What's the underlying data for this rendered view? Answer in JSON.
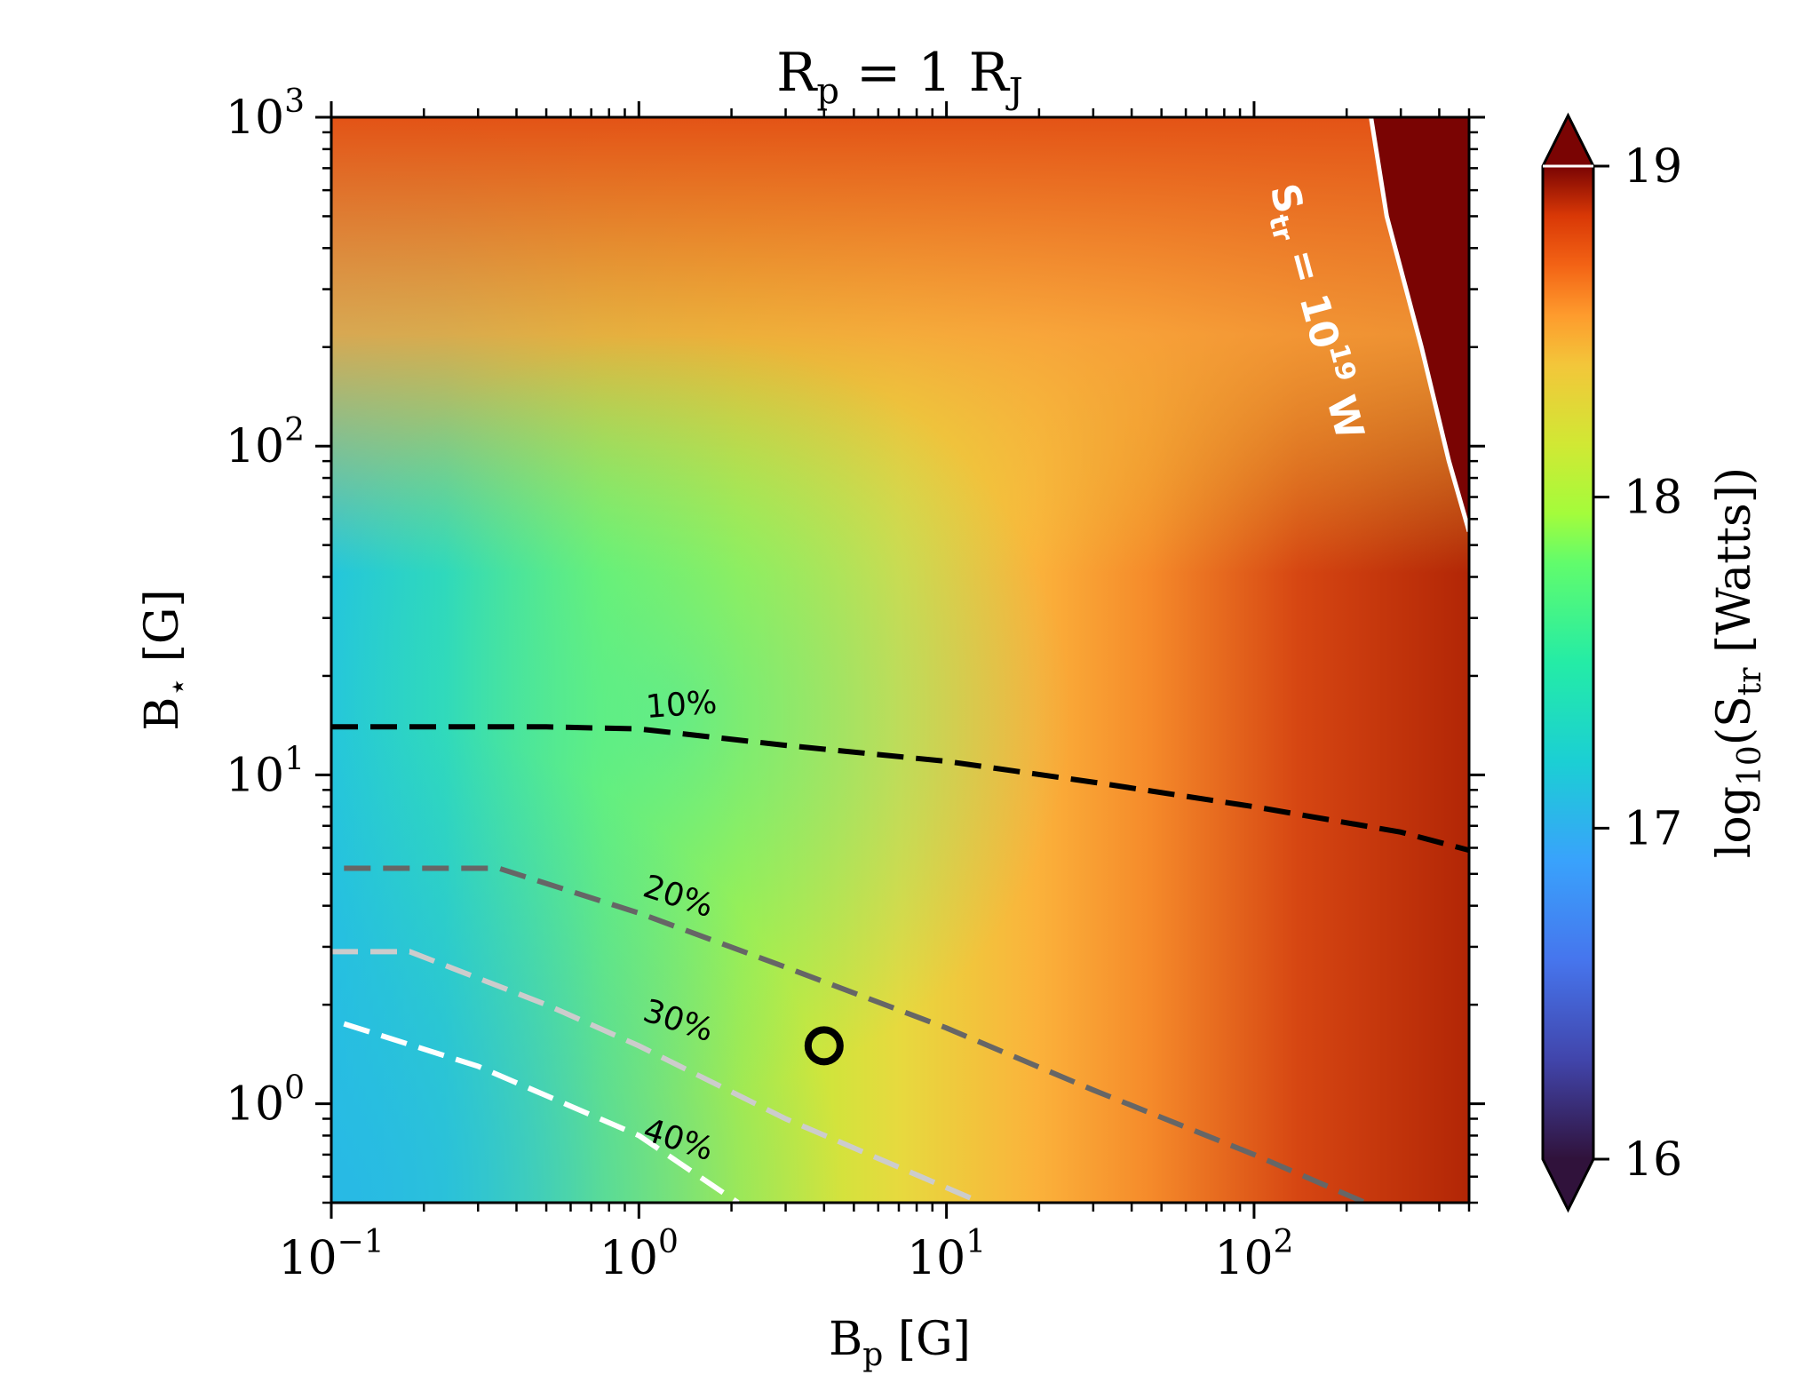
{
  "title": {
    "main": "R",
    "sub": "p",
    "eq": " = 1 R",
    "sub2": "J"
  },
  "xaxis": {
    "label": "B",
    "label_sub": "p",
    "label_unit": " [G]",
    "scale": "log",
    "lim": [
      0.1,
      500
    ],
    "ticks": [
      {
        "base": "10",
        "exp": "−1",
        "value": 0.1
      },
      {
        "base": "10",
        "exp": "0",
        "value": 1
      },
      {
        "base": "10",
        "exp": "1",
        "value": 10
      },
      {
        "base": "10",
        "exp": "2",
        "value": 100
      }
    ]
  },
  "yaxis": {
    "label": "B",
    "label_sub": "⋆",
    "label_unit": " [G]",
    "scale": "log",
    "lim": [
      0.5,
      1000
    ],
    "ticks": [
      {
        "base": "10",
        "exp": "0",
        "value": 1
      },
      {
        "base": "10",
        "exp": "1",
        "value": 10
      },
      {
        "base": "10",
        "exp": "2",
        "value": 100
      },
      {
        "base": "10",
        "exp": "3",
        "value": 1000
      }
    ]
  },
  "colorbar": {
    "label_prefix": "log",
    "label_sub": "10",
    "label_mid": "(S",
    "label_sub2": "tr",
    "label_suffix": " [Watts])",
    "range": [
      16,
      19
    ],
    "extend": "both",
    "ticks": [
      {
        "label": "16",
        "value": 16
      },
      {
        "label": "17",
        "value": 17
      },
      {
        "label": "18",
        "value": 18
      },
      {
        "label": "19",
        "value": 19
      }
    ],
    "colormap": "turbo"
  },
  "chart_data": {
    "type": "heatmap",
    "title": "Rp = 1 RJ",
    "xlabel": "Bp [G]",
    "ylabel": "B⋆ [G]",
    "xscale": "log",
    "yscale": "log",
    "xlim": [
      0.1,
      500
    ],
    "ylim": [
      0.5,
      1000
    ],
    "zlabel": "log10(Str [Watts])",
    "zlim": [
      16,
      19
    ],
    "contours": [
      {
        "label": "10%",
        "color": "#000000",
        "style": "dashed",
        "x": [
          0.1,
          0.5,
          1,
          3,
          10,
          30,
          100,
          300,
          500
        ],
        "y": [
          14,
          14,
          13.8,
          12.3,
          11,
          9.5,
          8,
          6.7,
          5.9
        ]
      },
      {
        "label": "20%",
        "color": "#666666",
        "style": "dashed",
        "x": [
          0.11,
          0.35,
          1,
          3,
          10,
          30,
          100,
          230
        ],
        "y": [
          5.2,
          5.2,
          3.8,
          2.6,
          1.7,
          1.1,
          0.7,
          0.5
        ]
      },
      {
        "label": "30%",
        "color": "#cccccc",
        "style": "dashed",
        "x": [
          0.1,
          0.18,
          0.5,
          1,
          3,
          13
        ],
        "y": [
          2.9,
          2.9,
          2.0,
          1.5,
          0.9,
          0.5
        ]
      },
      {
        "label": "40%",
        "color": "#ffffff",
        "style": "dashed",
        "x": [
          0.11,
          0.3,
          1,
          2.1
        ],
        "y": [
          1.75,
          1.3,
          0.8,
          0.5
        ]
      },
      {
        "label": "Str = 10^19 W",
        "color": "#ffffff",
        "style": "solid",
        "x": [
          240,
          270,
          350,
          430,
          500
        ],
        "y": [
          1000,
          500,
          200,
          90,
          55
        ]
      }
    ],
    "markers": [
      {
        "x": 4,
        "y": 1.5,
        "shape": "open-circle"
      }
    ]
  },
  "annotations": {
    "c10": "10%",
    "c20": "20%",
    "c30": "30%",
    "c40": "40%",
    "str_S": "S",
    "str_sub": "tr",
    "str_eq": " = 10",
    "str_exp": "19",
    "str_unit": " W"
  }
}
